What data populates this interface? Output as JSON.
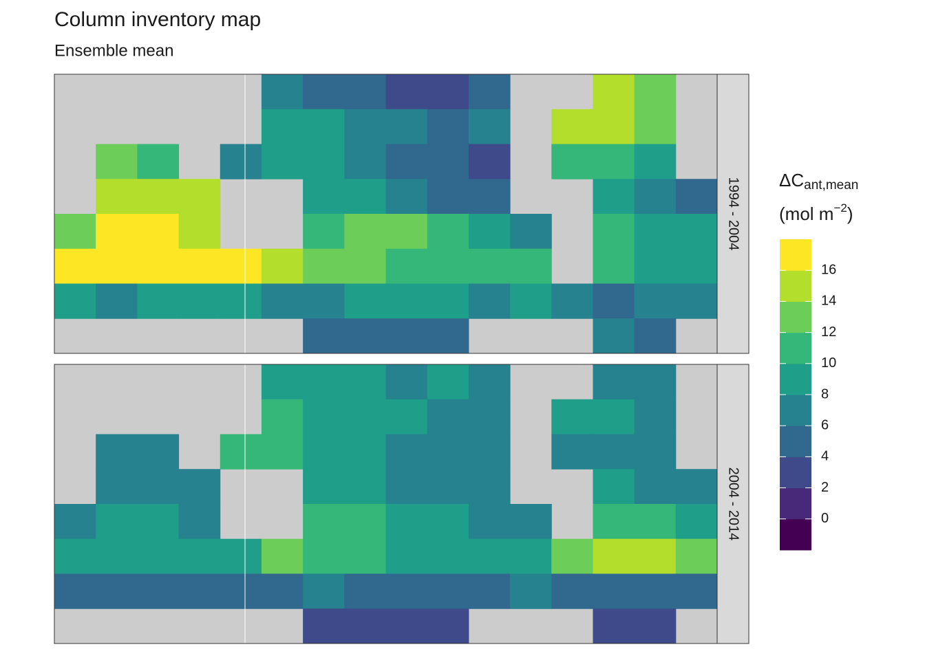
{
  "chart_data": {
    "type": "heatmap",
    "title": "Column inventory map",
    "subtitle": "Ensemble mean",
    "legend_title": {
      "main": "ΔC",
      "sub": "ant,mean",
      "unit": "(mol m",
      "sup": "−2",
      "close": ")"
    },
    "colorbar": {
      "bins": [
        -2,
        0,
        2,
        4,
        6,
        8,
        10,
        12,
        14,
        16,
        18
      ],
      "colors": [
        "#440154",
        "#482878",
        "#3e4a89",
        "#31688e",
        "#26828e",
        "#1f9e89",
        "#35b779",
        "#6dcd59",
        "#b4de2c",
        "#fde725"
      ],
      "ticks": [
        0,
        2,
        4,
        6,
        8,
        10,
        12,
        14,
        16
      ]
    },
    "facets": [
      {
        "label": "1994 - 2004",
        "values": [
          [
            null,
            null,
            null,
            null,
            null,
            6,
            4,
            4,
            2,
            2,
            4,
            null,
            null,
            14,
            12,
            null
          ],
          [
            null,
            null,
            null,
            null,
            null,
            8,
            8,
            6,
            6,
            4,
            6,
            null,
            14,
            14,
            12,
            null
          ],
          [
            null,
            12,
            10,
            null,
            6,
            8,
            8,
            6,
            4,
            4,
            2,
            null,
            10,
            10,
            8,
            null
          ],
          [
            null,
            14,
            14,
            14,
            null,
            null,
            8,
            8,
            6,
            4,
            4,
            null,
            null,
            8,
            6,
            4
          ],
          [
            12,
            16,
            16,
            14,
            null,
            null,
            10,
            12,
            12,
            10,
            8,
            6,
            null,
            10,
            8,
            8
          ],
          [
            16,
            16,
            16,
            16,
            16,
            14,
            12,
            12,
            10,
            10,
            10,
            10,
            null,
            10,
            8,
            8
          ],
          [
            8,
            6,
            8,
            8,
            8,
            6,
            6,
            8,
            8,
            8,
            6,
            8,
            6,
            4,
            6,
            6
          ],
          [
            null,
            null,
            null,
            null,
            null,
            null,
            4,
            4,
            4,
            4,
            null,
            null,
            null,
            6,
            4,
            null
          ]
        ]
      },
      {
        "label": "2004 - 2014",
        "values": [
          [
            null,
            null,
            null,
            null,
            null,
            8,
            8,
            8,
            6,
            8,
            6,
            null,
            null,
            6,
            6,
            null
          ],
          [
            null,
            null,
            null,
            null,
            null,
            10,
            8,
            8,
            8,
            6,
            6,
            null,
            8,
            8,
            6,
            null
          ],
          [
            null,
            6,
            6,
            null,
            10,
            10,
            8,
            8,
            6,
            6,
            6,
            null,
            6,
            6,
            6,
            null
          ],
          [
            null,
            6,
            6,
            6,
            null,
            null,
            8,
            8,
            6,
            6,
            6,
            null,
            null,
            8,
            6,
            6
          ],
          [
            6,
            8,
            8,
            6,
            null,
            null,
            10,
            10,
            8,
            8,
            6,
            6,
            null,
            10,
            10,
            8
          ],
          [
            8,
            8,
            8,
            8,
            8,
            12,
            10,
            10,
            8,
            8,
            8,
            8,
            12,
            14,
            14,
            12
          ],
          [
            4,
            4,
            4,
            4,
            4,
            4,
            6,
            4,
            4,
            4,
            4,
            6,
            4,
            4,
            4,
            4
          ],
          [
            null,
            null,
            null,
            null,
            null,
            null,
            2,
            2,
            2,
            2,
            null,
            null,
            null,
            2,
            2,
            null
          ]
        ]
      }
    ]
  }
}
